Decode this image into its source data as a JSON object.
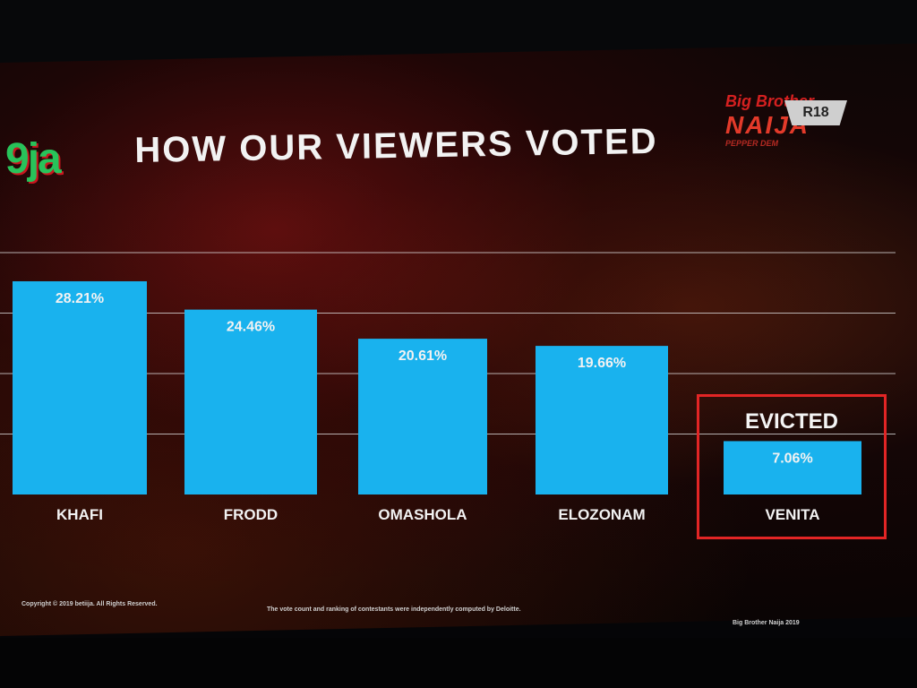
{
  "header": {
    "logo_text": "9ja",
    "title": "HOW OUR VIEWERS VOTED",
    "show_logo_line1": "Big Brother",
    "show_logo_line2": "NAIJA",
    "show_logo_line3": "PEPPER DEM",
    "show_badge": "R18"
  },
  "evicted_label": "EVICTED",
  "footer": {
    "copyright": "Copyright © 2019 betiija. All Rights Reserved.",
    "disclaimer": "The vote count and ranking of contestants were independently computed by Deloitte.",
    "show_name": "Big Brother Naija 2019"
  },
  "colors": {
    "bar": "#19b2ee",
    "evicted_border": "#e22525",
    "gridline": "#d9d9d9"
  },
  "chart_data": {
    "type": "bar",
    "title": "HOW OUR VIEWERS VOTED",
    "categories": [
      "KHAFI",
      "FRODD",
      "OMASHOLA",
      "ELOZONAM",
      "VENITA"
    ],
    "values": [
      28.21,
      24.46,
      20.61,
      19.66,
      7.06
    ],
    "value_labels": [
      "28.21%",
      "24.46%",
      "20.61%",
      "19.66%",
      "7.06%"
    ],
    "ylim": [
      0,
      32
    ],
    "grid": true,
    "highlight": {
      "category": "VENITA",
      "label": "EVICTED"
    }
  }
}
